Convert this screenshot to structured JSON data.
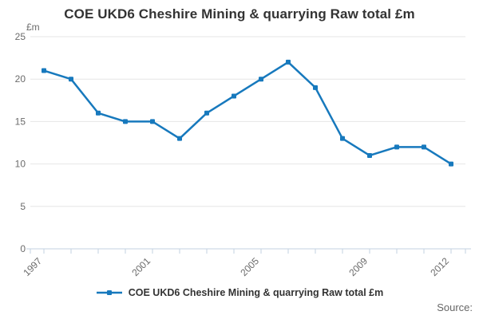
{
  "title": "COE UKD6 Cheshire Mining & quarrying Raw total £m",
  "y_unit_label": "£m",
  "legend": {
    "label": "COE UKD6 Cheshire Mining & quarrying Raw total £m",
    "marker": "line-with-square-marker-icon"
  },
  "source_label": "Source:",
  "colors": {
    "line": "#1779bd",
    "grid": "#e6e6e6",
    "axis": "#c3d2e0",
    "muted_text": "#6b6b6b",
    "title_text": "#333333",
    "background": "#ffffff"
  },
  "chart_data": {
    "type": "line",
    "title": "COE UKD6 Cheshire Mining & quarrying Raw total £m",
    "xlabel": "",
    "ylabel": "£m",
    "x": [
      1997,
      1998,
      1999,
      2000,
      2001,
      2002,
      2003,
      2004,
      2005,
      2006,
      2007,
      2008,
      2009,
      2010,
      2011,
      2012
    ],
    "series": [
      {
        "name": "COE UKD6 Cheshire Mining & quarrying Raw total £m",
        "values": [
          21,
          20,
          16,
          15,
          15,
          13,
          16,
          18,
          20,
          22,
          19,
          13,
          11,
          12,
          12,
          10
        ]
      }
    ],
    "ylim": [
      0,
      25
    ],
    "y_ticks": [
      0,
      5,
      10,
      15,
      20,
      25
    ],
    "x_tick_labels": [
      "1997",
      "2001",
      "2005",
      "2009",
      "2012"
    ],
    "grid": "horizontal",
    "legend_position": "bottom",
    "marker": "square"
  }
}
